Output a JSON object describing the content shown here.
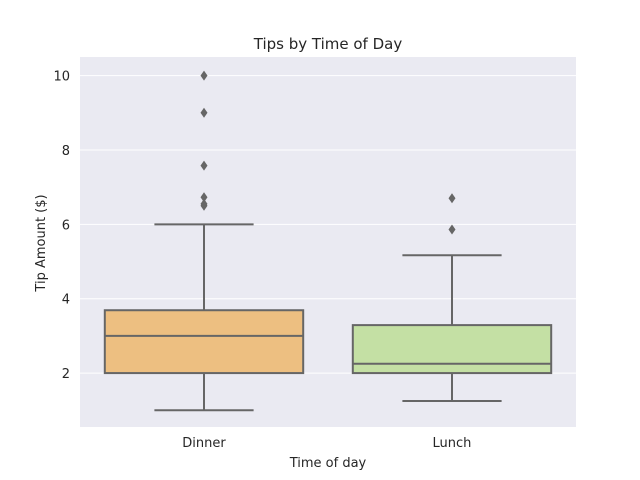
{
  "chart_data": {
    "type": "box",
    "title": "Tips by Time of Day",
    "xlabel": "Time of day",
    "ylabel": "Tip Amount ($)",
    "ylim": [
      0.55,
      10.5
    ],
    "yticks": [
      "2",
      "4",
      "6",
      "8",
      "10"
    ],
    "grid": true,
    "background": "#eaeaf2",
    "categories": [
      "Dinner",
      "Lunch"
    ],
    "boxes": [
      {
        "category": "Dinner",
        "color": "#edbf81",
        "whisker_low": 1.0,
        "q1": 2.0,
        "median": 3.0,
        "q3": 3.69,
        "whisker_high": 6.0,
        "outliers": [
          6.5,
          6.55,
          6.73,
          7.58,
          9.0,
          10.0
        ]
      },
      {
        "category": "Lunch",
        "color": "#c4e0a4",
        "whisker_low": 1.25,
        "q1": 2.0,
        "median": 2.25,
        "q3": 3.29,
        "whisker_high": 5.17,
        "outliers": [
          5.86,
          6.7
        ]
      }
    ]
  }
}
